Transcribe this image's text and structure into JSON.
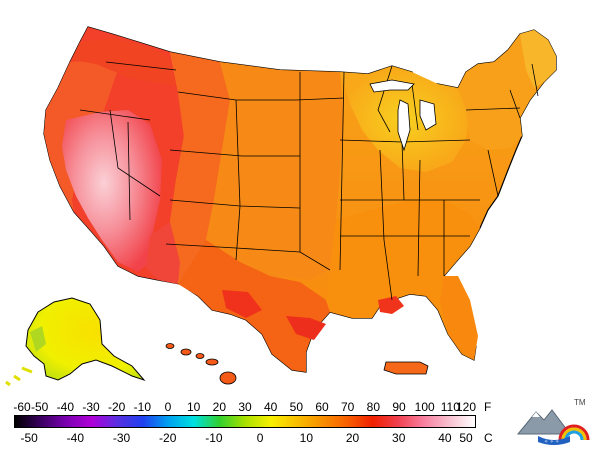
{
  "legend": {
    "fahrenheit_ticks": [
      "-60",
      "-50",
      "-40",
      "-30",
      "-20",
      "-10",
      "0",
      "10",
      "20",
      "30",
      "40",
      "50",
      "60",
      "70",
      "80",
      "90",
      "100",
      "110",
      "120"
    ],
    "fahrenheit_unit": "F",
    "celsius_ticks": [
      "-50",
      "-40",
      "-30",
      "-20",
      "-10",
      "0",
      "10",
      "20",
      "30",
      "40",
      "50"
    ],
    "celsius_unit": "C",
    "color_stops": [
      "#000000",
      "#3a0060",
      "#7a00b0",
      "#b000d8",
      "#5a30e0",
      "#2040f0",
      "#00a0f0",
      "#00e0e0",
      "#30d030",
      "#a8e000",
      "#f8f000",
      "#f8c000",
      "#f89000",
      "#f86000",
      "#f02000",
      "#f04050",
      "#f880a0",
      "#f8c0d0",
      "#ffffff"
    ]
  },
  "map_regions": [
    {
      "name": "northwest",
      "color": "#f44a1c"
    },
    {
      "name": "west-hot-core",
      "color": "#f23a22"
    },
    {
      "name": "great-basin",
      "color": "#f6909a"
    },
    {
      "name": "desert-southwest",
      "color": "#f8b4bc"
    },
    {
      "name": "great-plains",
      "color": "#f78418"
    },
    {
      "name": "great-lakes",
      "color": "#f8c018"
    },
    {
      "name": "southeast",
      "color": "#f88a10"
    },
    {
      "name": "texas",
      "color": "#f55a12"
    }
  ],
  "logo": {
    "tm": "TM"
  }
}
